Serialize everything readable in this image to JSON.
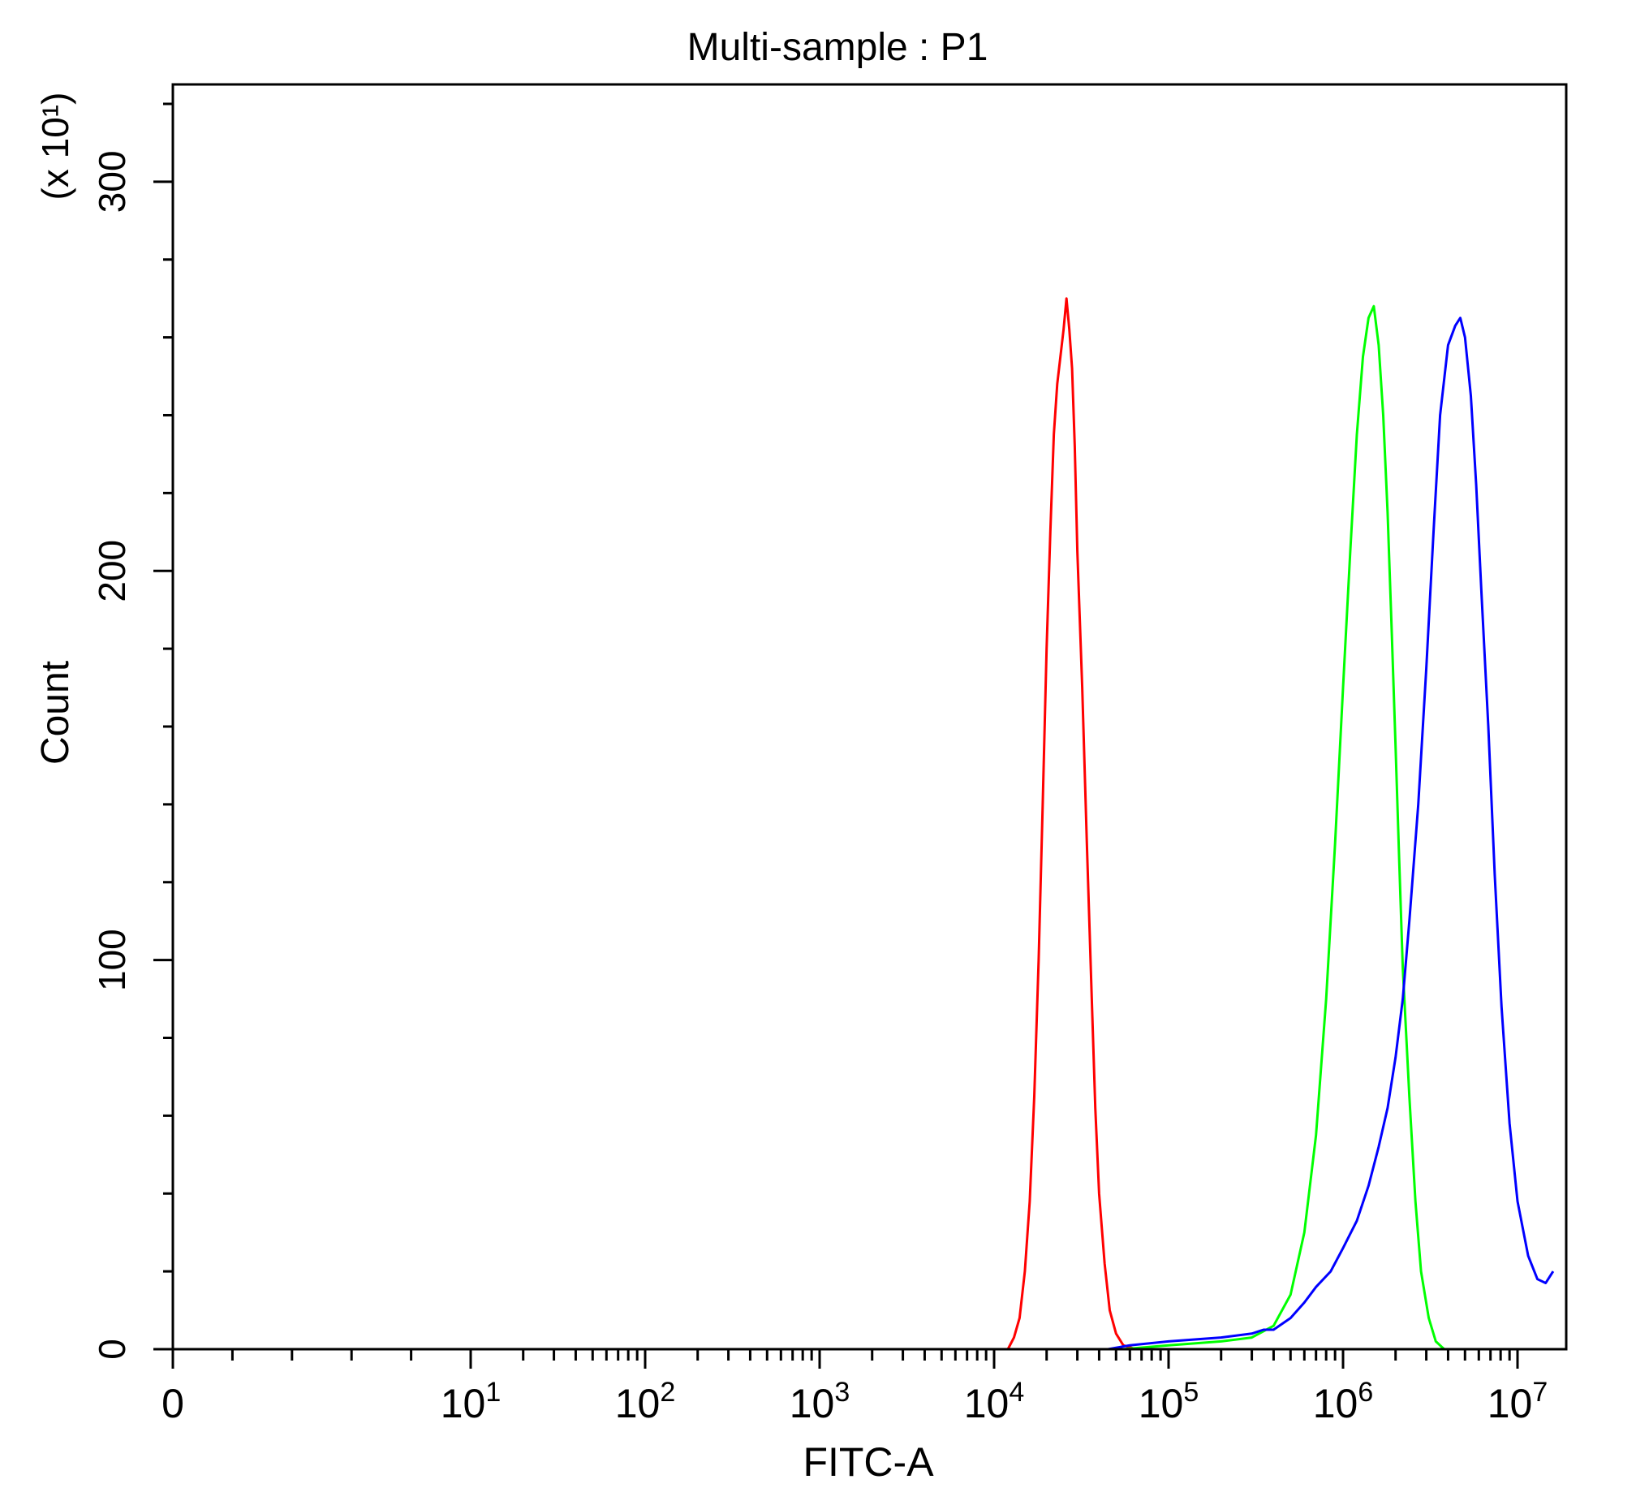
{
  "chart_data": {
    "type": "line",
    "title": "Multi-sample : P1",
    "xlabel": "FITC-A",
    "ylabel": "Count",
    "y_multiplier": "(x 10¹)",
    "x_scale": "biexponential-log",
    "xlim": [
      0,
      16000000
    ],
    "ylim": [
      0,
      325
    ],
    "grid": false,
    "legend": "none",
    "x_ticks": [
      {
        "value": 0,
        "base": "0",
        "exp": ""
      },
      {
        "value": 10,
        "base": "10",
        "exp": "1"
      },
      {
        "value": 100,
        "base": "10",
        "exp": "2"
      },
      {
        "value": 1000,
        "base": "10",
        "exp": "3"
      },
      {
        "value": 10000,
        "base": "10",
        "exp": "4"
      },
      {
        "value": 100000,
        "base": "10",
        "exp": "5"
      },
      {
        "value": 1000000,
        "base": "10",
        "exp": "6"
      },
      {
        "value": 10000000,
        "base": "10",
        "exp": "7"
      }
    ],
    "y_ticks": [
      {
        "value": 0,
        "label": "0"
      },
      {
        "value": 100,
        "label": "100"
      },
      {
        "value": 200,
        "label": "200"
      },
      {
        "value": 300,
        "label": "300"
      }
    ],
    "series": [
      {
        "color": "#ff0000",
        "points": [
          [
            12000,
            0
          ],
          [
            13000,
            3
          ],
          [
            14000,
            8
          ],
          [
            15000,
            20
          ],
          [
            16000,
            38
          ],
          [
            17000,
            65
          ],
          [
            18000,
            100
          ],
          [
            19000,
            140
          ],
          [
            20000,
            180
          ],
          [
            21000,
            210
          ],
          [
            22000,
            235
          ],
          [
            23000,
            248
          ],
          [
            24000,
            255
          ],
          [
            25000,
            262
          ],
          [
            26000,
            270
          ],
          [
            27000,
            262
          ],
          [
            28000,
            252
          ],
          [
            29000,
            232
          ],
          [
            30000,
            205
          ],
          [
            32000,
            170
          ],
          [
            34000,
            130
          ],
          [
            36000,
            95
          ],
          [
            38000,
            62
          ],
          [
            40000,
            40
          ],
          [
            43000,
            22
          ],
          [
            46000,
            10
          ],
          [
            50000,
            4
          ],
          [
            55000,
            1
          ],
          [
            65000,
            0
          ]
        ]
      },
      {
        "color": "#00ff00",
        "points": [
          [
            55000,
            0
          ],
          [
            100000,
            1
          ],
          [
            200000,
            2
          ],
          [
            300000,
            3
          ],
          [
            400000,
            6
          ],
          [
            500000,
            14
          ],
          [
            600000,
            30
          ],
          [
            700000,
            55
          ],
          [
            800000,
            90
          ],
          [
            900000,
            130
          ],
          [
            1000000,
            170
          ],
          [
            1100000,
            205
          ],
          [
            1200000,
            235
          ],
          [
            1300000,
            255
          ],
          [
            1400000,
            265
          ],
          [
            1500000,
            268
          ],
          [
            1600000,
            258
          ],
          [
            1700000,
            240
          ],
          [
            1800000,
            215
          ],
          [
            1900000,
            185
          ],
          [
            2000000,
            155
          ],
          [
            2100000,
            125
          ],
          [
            2200000,
            98
          ],
          [
            2400000,
            65
          ],
          [
            2600000,
            38
          ],
          [
            2800000,
            20
          ],
          [
            3100000,
            8
          ],
          [
            3400000,
            2
          ],
          [
            3800000,
            0
          ]
        ]
      },
      {
        "color": "#0000ff",
        "points": [
          [
            45000,
            0
          ],
          [
            60000,
            1
          ],
          [
            100000,
            2
          ],
          [
            200000,
            3
          ],
          [
            300000,
            4
          ],
          [
            350000,
            5
          ],
          [
            400000,
            5
          ],
          [
            500000,
            8
          ],
          [
            600000,
            12
          ],
          [
            700000,
            16
          ],
          [
            850000,
            20
          ],
          [
            1000000,
            26
          ],
          [
            1200000,
            33
          ],
          [
            1400000,
            42
          ],
          [
            1600000,
            52
          ],
          [
            1800000,
            62
          ],
          [
            2000000,
            75
          ],
          [
            2200000,
            90
          ],
          [
            2400000,
            110
          ],
          [
            2700000,
            140
          ],
          [
            3000000,
            175
          ],
          [
            3300000,
            210
          ],
          [
            3600000,
            240
          ],
          [
            4000000,
            258
          ],
          [
            4400000,
            263
          ],
          [
            4700000,
            265
          ],
          [
            5000000,
            260
          ],
          [
            5400000,
            245
          ],
          [
            5800000,
            222
          ],
          [
            6200000,
            195
          ],
          [
            6800000,
            160
          ],
          [
            7400000,
            122
          ],
          [
            8100000,
            88
          ],
          [
            9000000,
            58
          ],
          [
            10000000,
            38
          ],
          [
            11500000,
            24
          ],
          [
            13000000,
            18
          ],
          [
            14500000,
            17
          ],
          [
            16000000,
            20
          ]
        ]
      }
    ]
  }
}
